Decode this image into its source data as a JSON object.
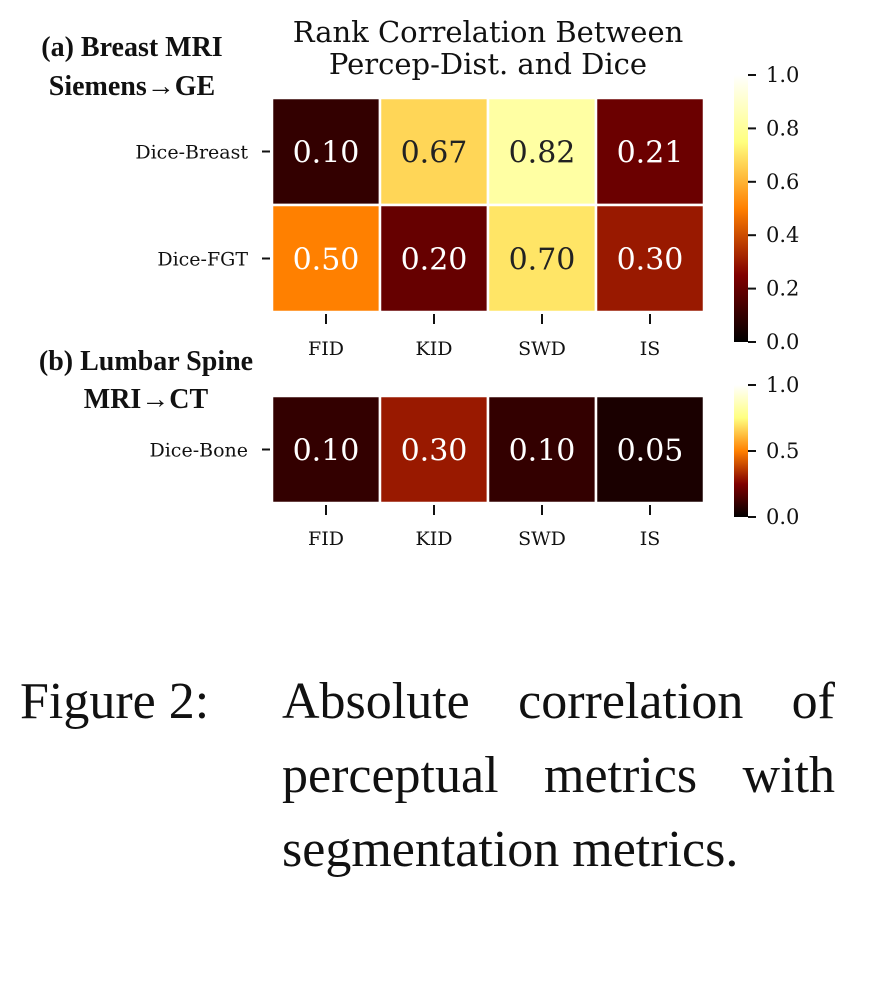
{
  "chart_data": [
    {
      "type": "heatmap",
      "panel_label_lines": [
        "(a) Breast MRI",
        "Siemens→GE"
      ],
      "title_lines": [
        "Rank Correlation Between",
        "Percep-Dist. and Dice"
      ],
      "rows": [
        "Dice-Breast",
        "Dice-FGT"
      ],
      "columns": [
        "FID",
        "KID",
        "SWD",
        "IS"
      ],
      "values": [
        [
          0.1,
          0.67,
          0.82,
          0.21
        ],
        [
          0.5,
          0.2,
          0.7,
          0.3
        ]
      ],
      "value_labels": [
        [
          "0.10",
          "0.67",
          "0.82",
          "0.21"
        ],
        [
          "0.50",
          "0.20",
          "0.70",
          "0.30"
        ]
      ],
      "vmin": 0.0,
      "vmax": 1.0,
      "colorbar_ticks": [
        "0.0",
        "0.2",
        "0.4",
        "0.6",
        "0.8",
        "1.0"
      ],
      "colormap": "afmhot"
    },
    {
      "type": "heatmap",
      "panel_label_lines": [
        "(b) Lumbar Spine",
        "MRI→CT"
      ],
      "rows": [
        "Dice-Bone"
      ],
      "columns": [
        "FID",
        "KID",
        "SWD",
        "IS"
      ],
      "values": [
        [
          0.1,
          0.3,
          0.1,
          0.05
        ]
      ],
      "value_labels": [
        [
          "0.10",
          "0.30",
          "0.10",
          "0.05"
        ]
      ],
      "vmin": 0.0,
      "vmax": 1.0,
      "colorbar_ticks": [
        "0.0",
        "0.5",
        "1.0"
      ],
      "colormap": "afmhot"
    }
  ],
  "caption": {
    "label": "Figure 2:",
    "text": "Absolute correlation of perceptual metrics with segmentation metrics."
  },
  "colors": {
    "cell_border": "#ffffff",
    "text_dark": "#222222",
    "text_light": "#ffffff"
  }
}
